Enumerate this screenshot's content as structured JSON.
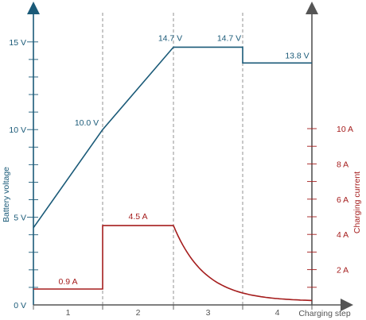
{
  "chart_data": {
    "type": "line",
    "xlabel": "Charging step",
    "ylabel_left": "Battery voltage",
    "ylabel_right": "Charging current",
    "x_categories": [
      "1",
      "2",
      "3",
      "4"
    ],
    "y_left": {
      "unit": "V",
      "ylim": [
        0,
        16
      ],
      "ticks": [
        0,
        5,
        10,
        15
      ],
      "tick_labels": [
        "0 V",
        "5 V",
        "10 V",
        "15 V"
      ]
    },
    "y_right": {
      "unit": "A",
      "ylim": [
        0,
        16
      ],
      "ticks": [
        2,
        4,
        6,
        8,
        10
      ],
      "tick_labels": [
        "2 A",
        "4 A",
        "6 A",
        "8 A",
        "10 A"
      ]
    },
    "step_boundaries": [
      0,
      1,
      2,
      3,
      4
    ],
    "series": [
      {
        "name": "Battery voltage",
        "axis": "left",
        "color": "#1a5a78",
        "points": [
          [
            0,
            4.4
          ],
          [
            1,
            10.0
          ],
          [
            2,
            14.7
          ],
          [
            3,
            14.7
          ],
          [
            3,
            13.8
          ],
          [
            4,
            13.8
          ]
        ]
      },
      {
        "name": "Charging current",
        "axis": "right",
        "color": "#a51d1d",
        "segments": [
          {
            "type": "linear",
            "points": [
              [
                0,
                0.9
              ],
              [
                1,
                0.9
              ],
              [
                1,
                4.5
              ],
              [
                2,
                4.5
              ]
            ]
          },
          {
            "type": "decay",
            "x_start": 2,
            "x_end": 4,
            "y_start": 4.5,
            "y_end": 0.2
          }
        ]
      }
    ],
    "data_labels": [
      {
        "series": "Battery voltage",
        "x": 1.0,
        "y": 10.0,
        "text": "10.0 V"
      },
      {
        "series": "Battery voltage",
        "x": 2.0,
        "y": 14.7,
        "text": "14.7 V"
      },
      {
        "series": "Battery voltage",
        "x": 3.0,
        "y": 14.7,
        "text": "14.7 V"
      },
      {
        "series": "Battery voltage",
        "x": 3.5,
        "y": 13.8,
        "text": "13.8 V"
      },
      {
        "series": "Charging current",
        "x": 0.5,
        "y": 0.9,
        "text": "0.9 A"
      },
      {
        "series": "Charging current",
        "x": 1.5,
        "y": 4.5,
        "text": "4.5 A"
      }
    ],
    "colors": {
      "left_axis": "#1a5a78",
      "right_axis": "#a51d1d",
      "bottom_axis": "#555555",
      "grid": "#777777"
    }
  }
}
